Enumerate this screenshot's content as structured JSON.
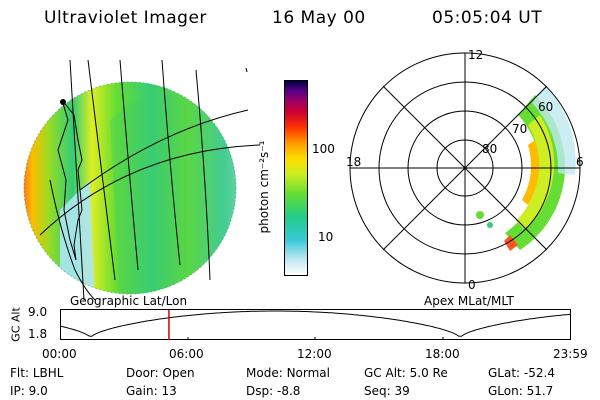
{
  "header": {
    "title": "Ultraviolet Imager",
    "date": "16 May 00",
    "time": "05:05:04 UT"
  },
  "colorbar": {
    "unit_label": "photon cm⁻²s⁻¹",
    "ticks": [
      "100",
      "10"
    ],
    "scale": "log",
    "colors": [
      "#ffffff",
      "#bfe8f0",
      "#39c8d8",
      "#22cc88",
      "#66dd33",
      "#ccee22",
      "#ffdd00",
      "#ff9900",
      "#ff3300",
      "#cc0033",
      "#990066",
      "#550088",
      "#000044"
    ]
  },
  "geo_panel": {
    "label": "Geographic Lat/Lon"
  },
  "polar_panel": {
    "label": "Apex MLat/MLT",
    "mlt_labels": {
      "top": "12",
      "left": "18",
      "right": "6",
      "bottom": "0"
    },
    "lat_labels": [
      "60",
      "70",
      "80"
    ]
  },
  "altitude_plot": {
    "ylabel": "GC Alt",
    "yticks": [
      "9.0",
      "1.8"
    ],
    "xticks": [
      "00:00",
      "06:00",
      "12:00",
      "18:00",
      "23:59"
    ],
    "current_time_hours": 5.08,
    "marker_color": "#dd0000"
  },
  "status": {
    "filter_label": "Flt:",
    "filter_value": "LBHL",
    "door_label": "Door:",
    "door_value": "Open",
    "mode_label": "Mode:",
    "mode_value": "Normal",
    "gcalt_label": "GC Alt:",
    "gcalt_value": "5.0 Re",
    "glat_label": "GLat:",
    "glat_value": "-52.4",
    "ip_label": "IP:",
    "ip_value": "9.0",
    "gain_label": "Gain:",
    "gain_value": "13",
    "dsp_label": "Dsp:",
    "dsp_value": "-8.8",
    "seq_label": "Seq:",
    "seq_value": "39",
    "glon_label": "GLon:",
    "glon_value": "51.7"
  }
}
